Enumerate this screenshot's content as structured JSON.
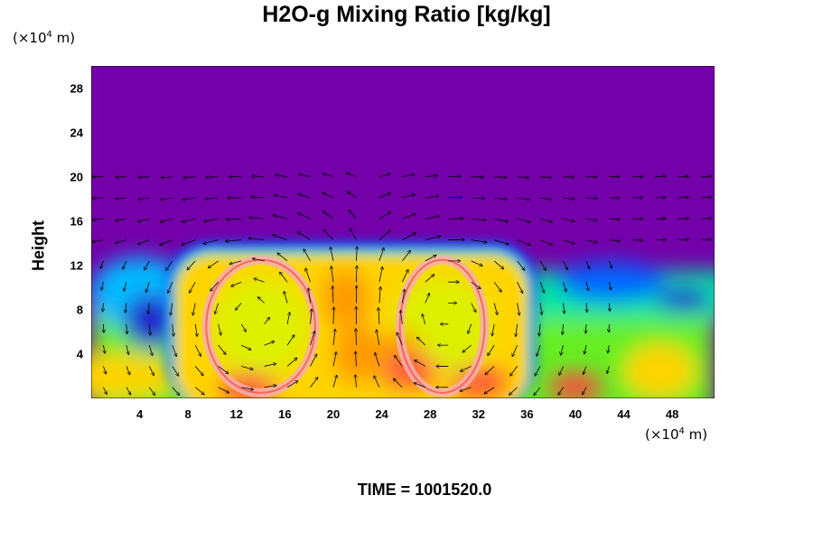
{
  "chart_data": {
    "type": "heatmap",
    "title": "H2O-g Mixing Ratio [kg/kg]",
    "xlabel": "",
    "ylabel": "Height",
    "x_unit": {
      "prefix": "(×10",
      "exp": "4",
      "suffix": " m)"
    },
    "y_unit": {
      "prefix": "(×10",
      "exp": "4",
      "suffix": " m)"
    },
    "xlim": [
      0,
      51.5
    ],
    "ylim": [
      0,
      30
    ],
    "x_ticks": [
      4,
      8,
      12,
      16,
      20,
      24,
      28,
      32,
      36,
      40,
      44,
      48
    ],
    "y_ticks": [
      4,
      8,
      12,
      16,
      20,
      24,
      28
    ],
    "colors": {
      "background": "#7300a9",
      "ramp": [
        "#7300a9",
        "#2222cc",
        "#0066ff",
        "#00bbff",
        "#00e5a0",
        "#66ee22",
        "#ddf000",
        "#ffd400",
        "#ff9a00",
        "#ff4444",
        "#f5b0b0"
      ]
    },
    "field_levels": {
      "moist_layer_top_height": 13.8,
      "left_cell_center": [
        14,
        7.5
      ],
      "right_cell_center": [
        29,
        7.5
      ],
      "moist_region_x_range": [
        7,
        36
      ]
    },
    "overlay": "wind vectors (arrows)",
    "grid": false
  },
  "time_label": "TIME = 1001520.0"
}
